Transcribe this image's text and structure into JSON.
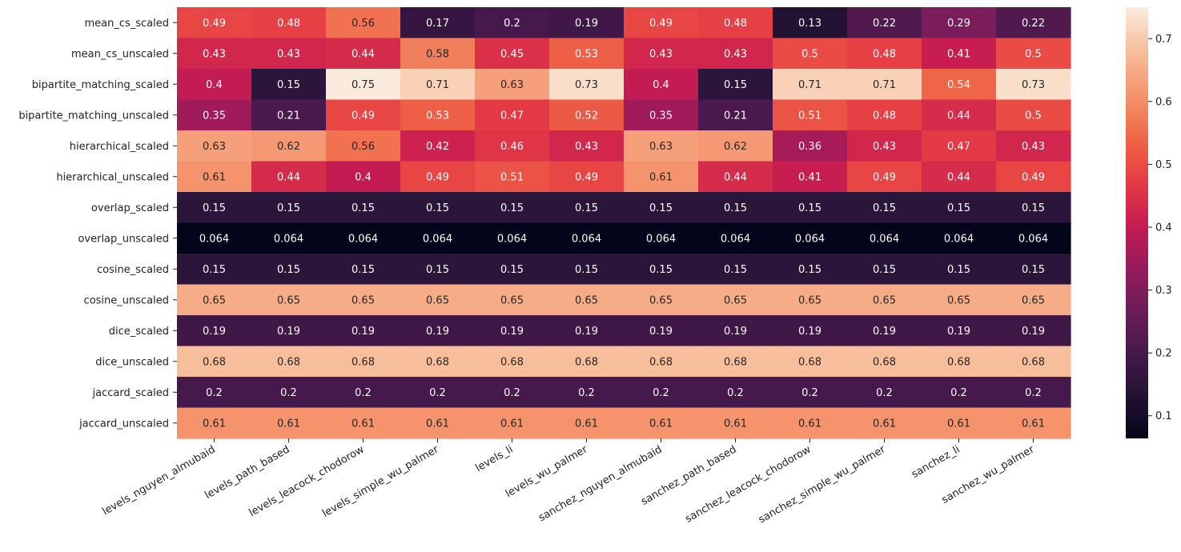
{
  "chart_data": {
    "type": "heatmap",
    "title": "",
    "xlabel": "",
    "ylabel": "",
    "rows": [
      "mean_cs_scaled",
      "mean_cs_unscaled",
      "bipartite_matching_scaled",
      "bipartite_matching_unscaled",
      "hierarchical_scaled",
      "hierarchical_unscaled",
      "overlap_scaled",
      "overlap_unscaled",
      "cosine_scaled",
      "cosine_unscaled",
      "dice_scaled",
      "dice_unscaled",
      "jaccard_scaled",
      "jaccard_unscaled"
    ],
    "columns": [
      "levels_nguyen_almubaid",
      "levels_path_based",
      "levels_leacock_chodorow",
      "levels_simple_wu_palmer",
      "levels_li",
      "levels_wu_palmer",
      "sanchez_nguyen_almubaid",
      "sanchez_path_based",
      "sanchez_leacock_chodorow",
      "sanchez_simple_wu_palmer",
      "sanchez_li",
      "sanchez_wu_palmer"
    ],
    "values": [
      [
        0.49,
        0.48,
        0.56,
        0.17,
        0.2,
        0.19,
        0.49,
        0.48,
        0.13,
        0.22,
        0.29,
        0.22
      ],
      [
        0.43,
        0.43,
        0.44,
        0.58,
        0.45,
        0.53,
        0.43,
        0.43,
        0.5,
        0.48,
        0.41,
        0.5
      ],
      [
        0.4,
        0.15,
        0.75,
        0.71,
        0.63,
        0.73,
        0.4,
        0.15,
        0.71,
        0.71,
        0.54,
        0.73
      ],
      [
        0.35,
        0.21,
        0.49,
        0.53,
        0.47,
        0.52,
        0.35,
        0.21,
        0.51,
        0.48,
        0.44,
        0.5
      ],
      [
        0.63,
        0.62,
        0.56,
        0.42,
        0.46,
        0.43,
        0.63,
        0.62,
        0.36,
        0.43,
        0.47,
        0.43
      ],
      [
        0.61,
        0.44,
        0.4,
        0.49,
        0.51,
        0.49,
        0.61,
        0.44,
        0.41,
        0.49,
        0.44,
        0.49
      ],
      [
        0.15,
        0.15,
        0.15,
        0.15,
        0.15,
        0.15,
        0.15,
        0.15,
        0.15,
        0.15,
        0.15,
        0.15
      ],
      [
        0.064,
        0.064,
        0.064,
        0.064,
        0.064,
        0.064,
        0.064,
        0.064,
        0.064,
        0.064,
        0.064,
        0.064
      ],
      [
        0.15,
        0.15,
        0.15,
        0.15,
        0.15,
        0.15,
        0.15,
        0.15,
        0.15,
        0.15,
        0.15,
        0.15
      ],
      [
        0.65,
        0.65,
        0.65,
        0.65,
        0.65,
        0.65,
        0.65,
        0.65,
        0.65,
        0.65,
        0.65,
        0.65
      ],
      [
        0.19,
        0.19,
        0.19,
        0.19,
        0.19,
        0.19,
        0.19,
        0.19,
        0.19,
        0.19,
        0.19,
        0.19
      ],
      [
        0.68,
        0.68,
        0.68,
        0.68,
        0.68,
        0.68,
        0.68,
        0.68,
        0.68,
        0.68,
        0.68,
        0.68
      ],
      [
        0.2,
        0.2,
        0.2,
        0.2,
        0.2,
        0.2,
        0.2,
        0.2,
        0.2,
        0.2,
        0.2,
        0.2
      ],
      [
        0.61,
        0.61,
        0.61,
        0.61,
        0.61,
        0.61,
        0.61,
        0.61,
        0.61,
        0.61,
        0.61,
        0.61
      ]
    ],
    "colormap": "rocket",
    "colorbar": {
      "vmin": 0.064,
      "vmax": 0.75,
      "ticks": [
        "0.1",
        "0.2",
        "0.3",
        "0.4",
        "0.5",
        "0.6",
        "0.7"
      ],
      "tick_values": [
        0.1,
        0.2,
        0.3,
        0.4,
        0.5,
        0.6,
        0.7
      ]
    },
    "grid": false,
    "legend": "colorbar-right"
  }
}
